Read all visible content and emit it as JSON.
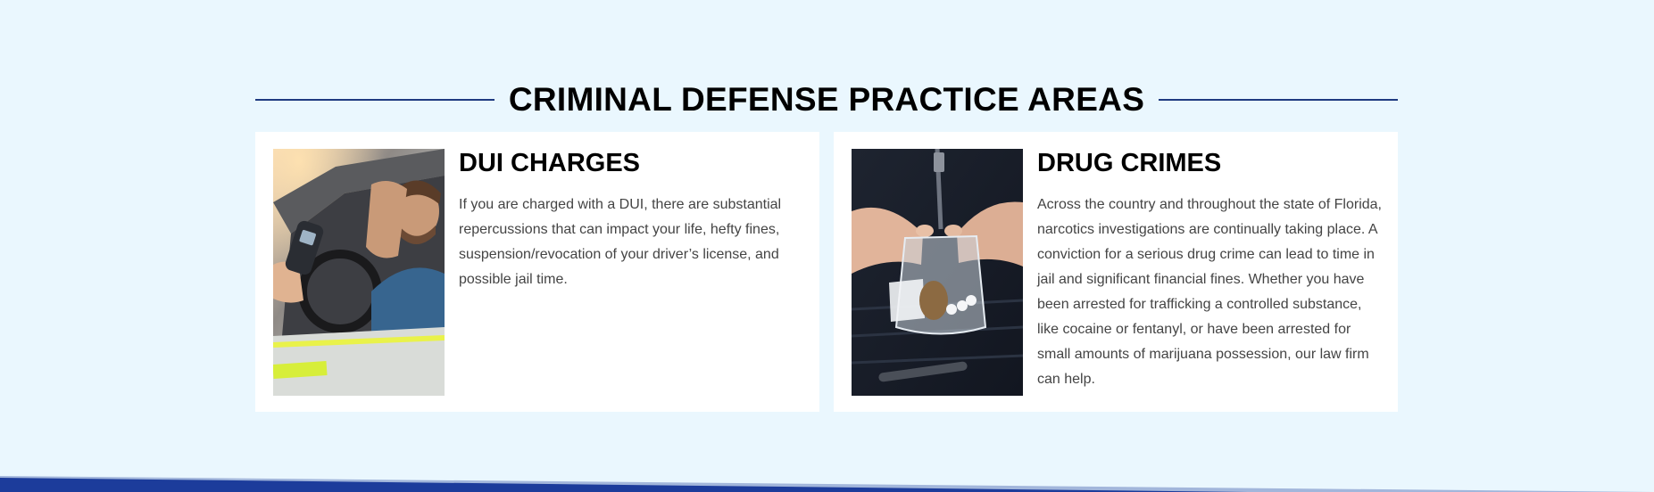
{
  "section": {
    "title": "CRIMINAL DEFENSE PRACTICE AREAS"
  },
  "cards": [
    {
      "title": "DUI CHARGES",
      "text": "If you are charged with a DUI, there are substantial repercussions that can impact your life, hefty fines, suspension/revocation of your driver’s license, and possible jail time.",
      "image_icon": "dui-breathalyzer-photo"
    },
    {
      "title": "DRUG CRIMES",
      "text": "Across the country and throughout the state of Florida, narcotics investigations are continually taking place. A conviction for a serious drug crime can lead to time in jail and significant financial fines. Whether you have been arrested for trafficking a controlled substance, like cocaine or fentanyl, or have been arrested for small amounts of marijuana possession, our law firm can help.",
      "image_icon": "drug-bag-photo"
    }
  ],
  "colors": {
    "background": "#eaf7fe",
    "accent_line": "#1f3a80",
    "footer_band": "#1d3c9c",
    "card_bg": "#ffffff"
  }
}
